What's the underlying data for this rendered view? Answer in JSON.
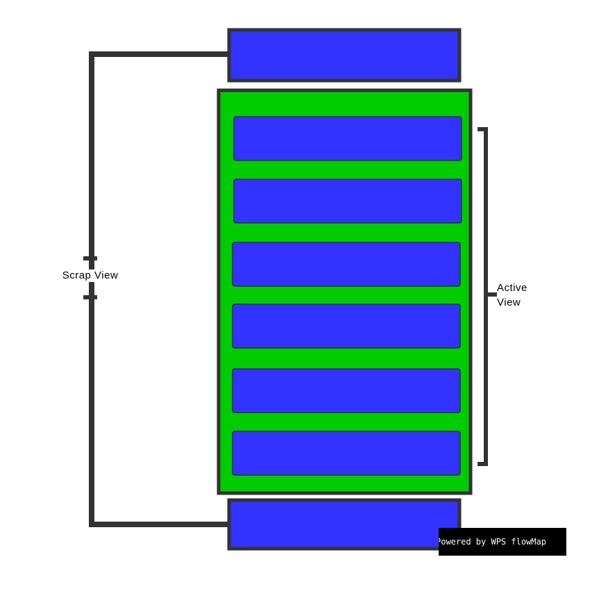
{
  "diagram": {
    "labels": {
      "scrap_view": "Scrap View",
      "active_view_line1": "Active",
      "active_view_line2": "View"
    },
    "watermark": "Powered by WPS flowMap",
    "colors": {
      "container_fill": "#00cc00",
      "item_fill": "#3333ff",
      "border": "#333333",
      "background": "#ffffff"
    },
    "nodes": {
      "scrap_top": "scrap-view-item-top",
      "active_items": [
        "active-item-1",
        "active-item-2",
        "active-item-3",
        "active-item-4",
        "active-item-5",
        "active-item-6"
      ],
      "scrap_bottom": "scrap-view-item-bottom"
    }
  }
}
